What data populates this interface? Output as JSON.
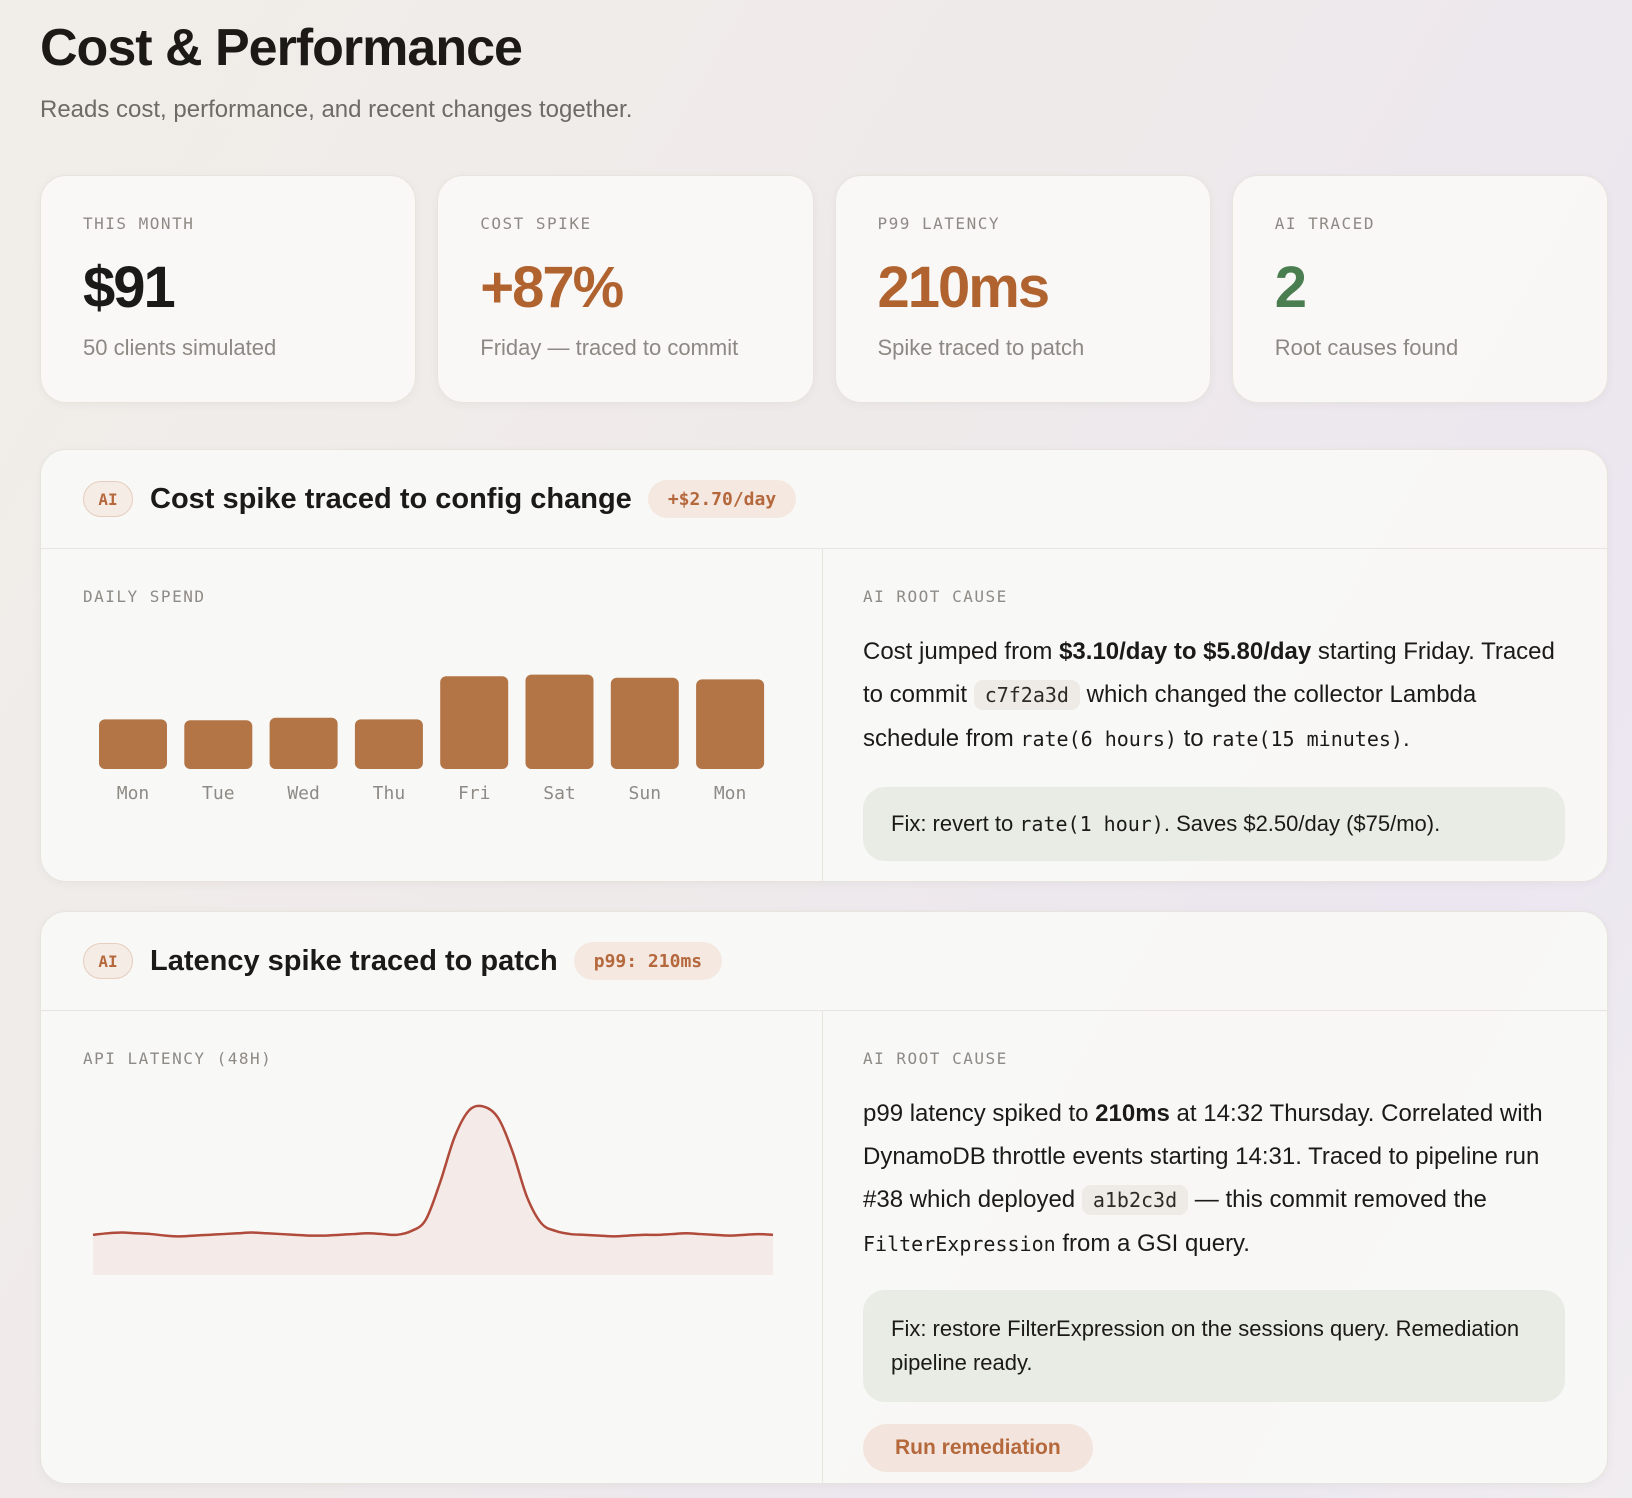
{
  "header": {
    "title": "Cost & Performance",
    "subtitle": "Reads cost, performance, and recent changes together."
  },
  "stats": [
    {
      "label": "THIS MONTH",
      "value": "$91",
      "note": "50 clients simulated",
      "color": "#1c1a17"
    },
    {
      "label": "COST SPIKE",
      "value": "+87%",
      "note": "Friday — traced to commit",
      "color": "#b0622f"
    },
    {
      "label": "P99 LATENCY",
      "value": "210ms",
      "note": "Spike traced to patch",
      "color": "#b0622f"
    },
    {
      "label": "AI TRACED",
      "value": "2",
      "note": "Root causes found",
      "color": "#4a7d4f"
    }
  ],
  "cost_panel": {
    "ai_badge": "AI",
    "title": "Cost spike traced to config change",
    "tag": "+$2.70/day",
    "chart_label": "DAILY SPEND",
    "root_label": "AI ROOT CAUSE",
    "root": {
      "t1": "Cost jumped from ",
      "b1": "$3.10/day to $5.80/day",
      "t2": " starting Friday. Traced to commit ",
      "commit": "c7f2a3d",
      "t3": " which changed the collector Lambda schedule from ",
      "code1": "rate(6 hours)",
      "t4": " to ",
      "code2": "rate(15 minutes)",
      "t5": "."
    },
    "fix": {
      "t1": "Fix: revert to ",
      "code": "rate(1 hour)",
      "t2": ". Saves $2.50/day ($75/mo)."
    }
  },
  "latency_panel": {
    "ai_badge": "AI",
    "title": "Latency spike traced to patch",
    "tag": "p99: 210ms",
    "chart_label": "API LATENCY (48H)",
    "root_label": "AI ROOT CAUSE",
    "root": {
      "t1": "p99 latency spiked to ",
      "b1": "210ms",
      "t2": " at 14:32 Thursday. Correlated with DynamoDB throttle events starting 14:31. Traced to pipeline run #38 which deployed ",
      "commit": "a1b2c3d",
      "t3": " — this commit removed the ",
      "code1": "FilterExpression",
      "t4": " from a GSI query."
    },
    "fix": "Fix: restore FilterExpression on the sessions query. Remediation pipeline ready.",
    "button": "Run remediation"
  },
  "chart_data": [
    {
      "type": "bar",
      "title": "DAILY SPEND",
      "categories": [
        "Mon",
        "Tue",
        "Wed",
        "Thu",
        "Fri",
        "Sat",
        "Sun",
        "Mon"
      ],
      "values": [
        3.1,
        3.05,
        3.2,
        3.1,
        5.8,
        5.9,
        5.7,
        5.6
      ],
      "ylim": [
        0,
        6
      ],
      "grid": false,
      "color": "#b37446"
    },
    {
      "type": "area",
      "title": "API LATENCY (48H)",
      "x": [
        0,
        1,
        2,
        3,
        4,
        5,
        6,
        7,
        8,
        9,
        10,
        11,
        12,
        13,
        14,
        15,
        16,
        17,
        18,
        19,
        20,
        21,
        22,
        23,
        24,
        25,
        26,
        27,
        28,
        29,
        30,
        31,
        32,
        33,
        34,
        35,
        36,
        37,
        38,
        39,
        40,
        41,
        42,
        43,
        44,
        45,
        46,
        47
      ],
      "values": [
        40,
        42,
        43,
        42,
        41,
        39,
        38,
        39,
        40,
        41,
        42,
        43,
        42,
        41,
        40,
        39,
        39,
        40,
        41,
        42,
        41,
        40,
        45,
        60,
        110,
        170,
        205,
        210,
        195,
        150,
        90,
        55,
        45,
        41,
        40,
        39,
        38,
        39,
        40,
        40,
        41,
        42,
        41,
        40,
        39,
        40,
        41,
        40
      ],
      "ylim": [
        0,
        220
      ],
      "grid": false,
      "color": "#b04a3a"
    }
  ]
}
